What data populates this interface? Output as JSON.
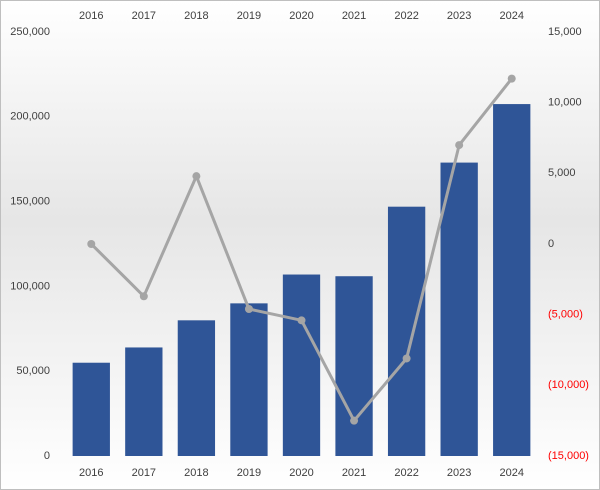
{
  "chart_data": {
    "type": "combo",
    "categories": [
      "2016",
      "2017",
      "2018",
      "2019",
      "2020",
      "2021",
      "2022",
      "2023",
      "2024"
    ],
    "series": [
      {
        "type": "bar",
        "axis": "y",
        "color": "#2f5597",
        "values": [
          55000,
          64000,
          80000,
          90000,
          107000,
          106000,
          147000,
          173000,
          207500
        ]
      },
      {
        "type": "line",
        "axis": "y2",
        "color": "#a5a5a5",
        "values": [
          0,
          -3700,
          4800,
          -4600,
          -5400,
          -12500,
          -8100,
          7000,
          11700
        ]
      }
    ],
    "ylim": [
      0,
      250000
    ],
    "yticks": [
      0,
      {
        "value": 50000,
        "label": "50,000"
      },
      {
        "value": 100000,
        "label": "100,000"
      },
      {
        "value": 150000,
        "label": "150,000"
      },
      {
        "value": 200000,
        "label": "200,000"
      },
      {
        "value": 250000,
        "label": "250,000"
      }
    ],
    "y2lim": [
      -15000,
      15000
    ],
    "y2ticks": [
      {
        "value": -15000,
        "label": "(15,000)"
      },
      {
        "value": -10000,
        "label": "(10,000)"
      },
      {
        "value": -5000,
        "label": "(5,000)"
      },
      0,
      {
        "value": 5000,
        "label": "5,000"
      },
      {
        "value": 10000,
        "label": "10,000"
      },
      {
        "value": 15000,
        "label": "15,000"
      }
    ],
    "negative_tick_color": "#ff0000",
    "grid": false
  }
}
